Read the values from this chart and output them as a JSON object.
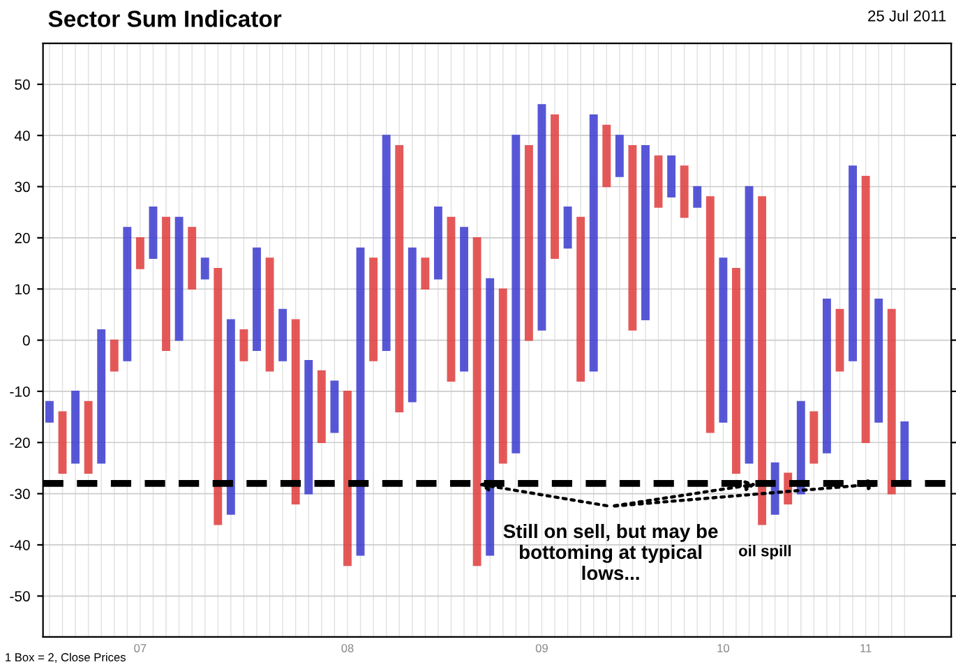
{
  "chart_data": {
    "type": "bar",
    "title": "Sector Sum Indicator",
    "subtitle": "25 Jul 2011",
    "categories": [
      null,
      null,
      null,
      null,
      null,
      null,
      null,
      "07",
      null,
      null,
      null,
      null,
      null,
      null,
      null,
      null,
      null,
      null,
      null,
      null,
      null,
      null,
      null,
      "08",
      null,
      null,
      null,
      null,
      null,
      null,
      null,
      null,
      null,
      null,
      null,
      null,
      null,
      null,
      "09",
      null,
      null,
      null,
      null,
      null,
      null,
      null,
      null,
      null,
      null,
      null,
      null,
      null,
      "10",
      null,
      null,
      null,
      null,
      null,
      null,
      null,
      null,
      null,
      null,
      "11",
      null,
      null,
      null
    ],
    "series": [
      {
        "color": "#3a3ad0",
        "values": [
          4,
          null,
          14,
          null,
          26,
          null,
          26,
          null,
          10,
          null,
          24,
          null,
          4,
          null,
          38,
          null,
          20,
          null,
          10,
          null,
          26,
          null,
          10,
          null,
          60,
          null,
          42,
          null,
          30,
          null,
          14,
          null,
          28,
          null,
          54,
          null,
          62,
          null,
          44,
          null,
          8,
          null,
          50,
          null,
          8,
          null,
          34,
          null,
          8,
          null,
          4,
          null,
          32,
          null,
          54,
          null,
          10,
          null,
          18,
          null,
          30,
          null,
          38,
          null,
          24,
          null,
          12
        ],
        "base": [
          -16,
          null,
          -24,
          null,
          -24,
          null,
          -4,
          null,
          16,
          null,
          0,
          null,
          12,
          null,
          -34,
          null,
          -2,
          null,
          -4,
          null,
          -30,
          null,
          -18,
          null,
          -42,
          null,
          -2,
          null,
          -12,
          null,
          12,
          null,
          -6,
          null,
          -42,
          null,
          -22,
          null,
          2,
          null,
          18,
          null,
          -6,
          null,
          32,
          null,
          4,
          null,
          28,
          null,
          26,
          null,
          -16,
          null,
          -24,
          null,
          -34,
          null,
          -30,
          null,
          -22,
          null,
          -4,
          null,
          -16,
          null,
          -28
        ]
      },
      {
        "color": "#e03c3c",
        "values": [
          null,
          12,
          null,
          14,
          null,
          6,
          null,
          6,
          null,
          26,
          null,
          12,
          null,
          50,
          null,
          6,
          null,
          22,
          null,
          36,
          null,
          14,
          null,
          34,
          null,
          20,
          null,
          52,
          null,
          6,
          null,
          32,
          null,
          64,
          null,
          34,
          null,
          38,
          null,
          28,
          null,
          32,
          null,
          12,
          null,
          36,
          null,
          10,
          null,
          10,
          null,
          46,
          null,
          40,
          null,
          64,
          null,
          6,
          null,
          10,
          null,
          12,
          null,
          52,
          null,
          36,
          null
        ],
        "base": [
          null,
          -26,
          null,
          -26,
          null,
          -6,
          null,
          14,
          null,
          -2,
          null,
          10,
          null,
          -36,
          null,
          -4,
          null,
          -6,
          null,
          -32,
          null,
          -20,
          null,
          -44,
          null,
          -4,
          null,
          -14,
          null,
          10,
          null,
          -8,
          null,
          -44,
          null,
          -24,
          null,
          0,
          null,
          16,
          null,
          -8,
          null,
          30,
          null,
          2,
          null,
          26,
          null,
          24,
          null,
          -18,
          null,
          -26,
          null,
          -36,
          null,
          -32,
          null,
          -24,
          null,
          -6,
          null,
          -20,
          null,
          -30,
          null
        ]
      }
    ],
    "ylim": [
      -58,
      58
    ],
    "yticks": [
      -50,
      -40,
      -30,
      -20,
      -10,
      0,
      10,
      20,
      30,
      40,
      50
    ],
    "ref_lines": [
      {
        "axis": "y",
        "value": -28,
        "color": "#000000",
        "line_style": "dashed"
      }
    ],
    "annotations": [
      {
        "text": "Still on sell, but may be bottoming at typical lows...",
        "y": -28
      },
      "oil spill",
      "1 Box = 2, Close Prices"
    ],
    "grid": true
  }
}
